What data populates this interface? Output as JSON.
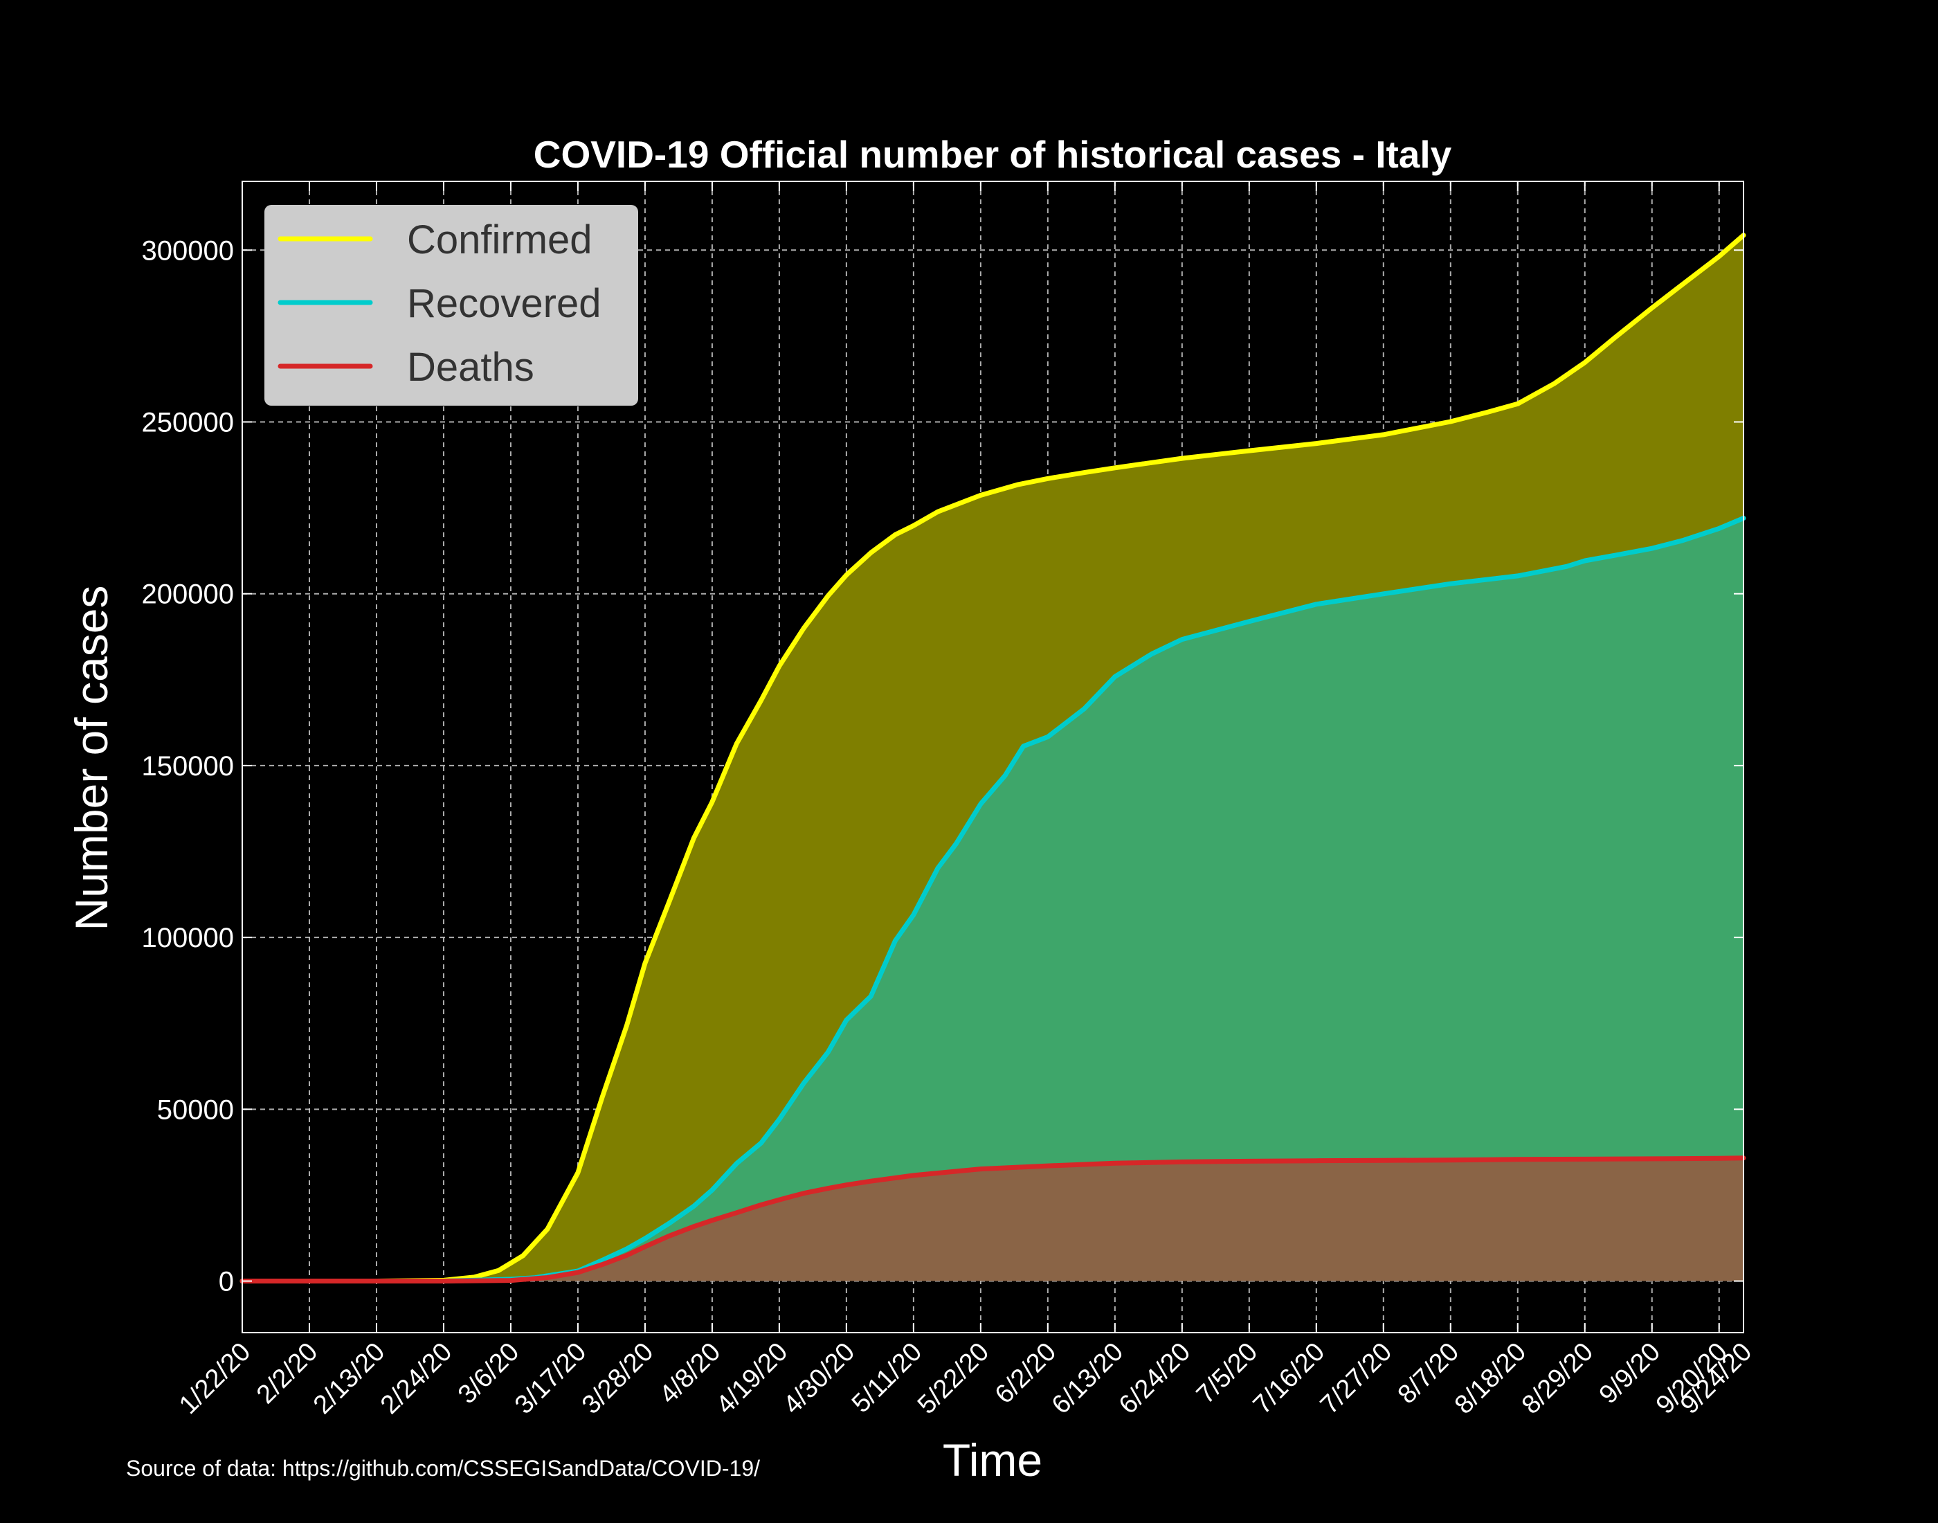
{
  "colors": {
    "background": "#000000",
    "confirmed": "#ffff00",
    "recovered": "#00cccc",
    "deaths": "#d62728",
    "fill_confirmed": "#7f7f00",
    "fill_recovered": "#3ea66a",
    "fill_deaths": "#8a6446",
    "grid": "#cccccc",
    "legend_bg": "#cccccc"
  },
  "source_text": "Source of data: https://github.com/CSSEGISandData/COVID-19/",
  "chart_data": {
    "type": "area",
    "title": "COVID-19 Official number of historical cases - Italy",
    "xlabel": "Time",
    "ylabel": "Number of cases",
    "ylim": [
      -15000,
      320000
    ],
    "yticks": [
      0,
      50000,
      100000,
      150000,
      200000,
      250000,
      300000
    ],
    "xlim": [
      "1/22/20",
      "9/24/20"
    ],
    "xticks": [
      "1/22/20",
      "2/2/20",
      "2/13/20",
      "2/24/20",
      "3/6/20",
      "3/17/20",
      "3/28/20",
      "4/8/20",
      "4/19/20",
      "4/30/20",
      "5/11/20",
      "5/22/20",
      "6/2/20",
      "6/13/20",
      "6/24/20",
      "7/5/20",
      "7/16/20",
      "7/27/20",
      "8/7/20",
      "8/18/20",
      "8/29/20",
      "9/9/20",
      "9/20/20",
      "9/24/20"
    ],
    "grid": true,
    "legend_position": "top-left",
    "series": [
      {
        "name": "Confirmed",
        "x": [
          "1/22/20",
          "2/2/20",
          "2/13/20",
          "2/24/20",
          "2/29/20",
          "3/4/20",
          "3/8/20",
          "3/12/20",
          "3/17/20",
          "3/21/20",
          "3/25/20",
          "3/28/20",
          "4/1/20",
          "4/5/20",
          "4/8/20",
          "4/12/20",
          "4/16/20",
          "4/19/20",
          "4/23/20",
          "4/27/20",
          "4/30/20",
          "5/4/20",
          "5/8/20",
          "5/11/20",
          "5/15/20",
          "5/22/20",
          "5/28/20",
          "6/2/20",
          "6/8/20",
          "6/13/20",
          "6/19/20",
          "6/24/20",
          "7/5/20",
          "7/16/20",
          "7/27/20",
          "8/7/20",
          "8/13/20",
          "8/18/20",
          "8/24/20",
          "8/29/20",
          "9/3/20",
          "9/9/20",
          "9/14/20",
          "9/20/20",
          "9/24/20"
        ],
        "values": [
          0,
          0,
          3,
          229,
          1128,
          3089,
          7375,
          15113,
          31506,
          53578,
          74386,
          92472,
          110574,
          128948,
          139422,
          156363,
          168941,
          178972,
          189973,
          199414,
          205463,
          211938,
          217185,
          219814,
          223885,
          228658,
          231732,
          233515,
          235278,
          236651,
          238159,
          239410,
          241611,
          243736,
          246286,
          250103,
          252809,
          255278,
          261174,
          267298,
          274644,
          283180,
          290000,
          298156,
          304323
        ]
      },
      {
        "name": "Recovered",
        "x": [
          "1/22/20",
          "2/24/20",
          "3/6/20",
          "3/10/20",
          "3/17/20",
          "3/21/20",
          "3/25/20",
          "3/28/20",
          "4/1/20",
          "4/5/20",
          "4/8/20",
          "4/12/20",
          "4/16/20",
          "4/19/20",
          "4/23/20",
          "4/27/20",
          "4/30/20",
          "5/4/20",
          "5/8/20",
          "5/11/20",
          "5/15/20",
          "5/18/20",
          "5/22/20",
          "5/26/20",
          "5/29/20",
          "6/2/20",
          "6/8/20",
          "6/13/20",
          "6/19/20",
          "6/24/20",
          "7/5/20",
          "7/16/20",
          "7/27/20",
          "8/7/20",
          "8/18/20",
          "8/26/20",
          "8/29/20",
          "9/3/20",
          "9/9/20",
          "9/14/20",
          "9/20/20",
          "9/24/20"
        ],
        "values": [
          0,
          1,
          523,
          1004,
          2941,
          6072,
          9362,
          12384,
          16847,
          21815,
          26491,
          34211,
          40164,
          47055,
          57576,
          66624,
          75945,
          82879,
          99023,
          106587,
          120205,
          127326,
          138840,
          147101,
          155633,
          158355,
          166584,
          175865,
          182453,
          186725,
          191944,
          196949,
          199974,
          202923,
          205203,
          207944,
          209610,
          211200,
          213200,
          215500,
          219000,
          222000
        ]
      },
      {
        "name": "Deaths",
        "x": [
          "1/22/20",
          "2/24/20",
          "3/6/20",
          "3/12/20",
          "3/17/20",
          "3/21/20",
          "3/25/20",
          "3/28/20",
          "4/1/20",
          "4/5/20",
          "4/8/20",
          "4/12/20",
          "4/16/20",
          "4/19/20",
          "4/23/20",
          "4/27/20",
          "4/30/20",
          "5/4/20",
          "5/11/20",
          "5/22/20",
          "6/2/20",
          "6/13/20",
          "6/24/20",
          "7/5/20",
          "7/16/20",
          "7/27/20",
          "8/7/20",
          "8/18/20",
          "8/29/20",
          "9/9/20",
          "9/20/20",
          "9/24/20"
        ],
        "values": [
          0,
          7,
          197,
          1016,
          2503,
          4825,
          7503,
          10023,
          13155,
          15887,
          17669,
          19899,
          22170,
          23660,
          25549,
          26977,
          27967,
          29079,
          30739,
          32616,
          33530,
          34301,
          34678,
          34869,
          35017,
          35112,
          35203,
          35400,
          35477,
          35587,
          35724,
          35800
        ]
      }
    ]
  }
}
